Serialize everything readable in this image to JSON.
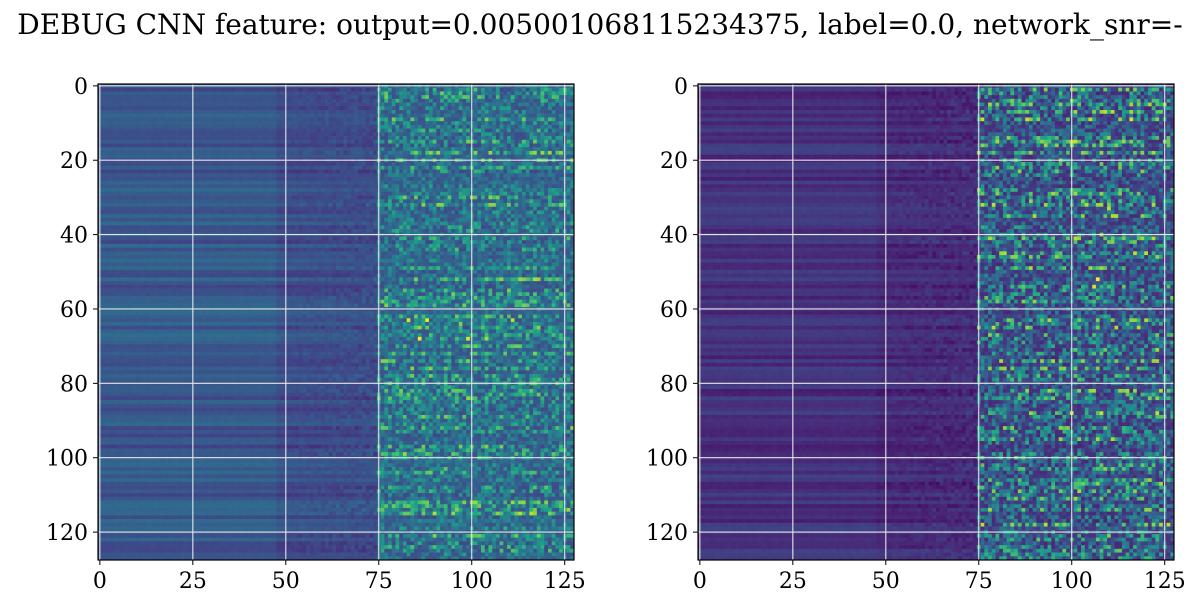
{
  "title": "DEBUG CNN feature: output=0.005001068115234375, label=0.0, network_snr=-",
  "colormap": "viridis",
  "grid": true,
  "chart_data": [
    {
      "type": "heatmap",
      "title": "",
      "xlabel": "",
      "ylabel": "",
      "xlim": [
        0,
        127
      ],
      "ylim": [
        127,
        0
      ],
      "grid": true,
      "x_ticks": [
        "0",
        "25",
        "50",
        "75",
        "100",
        "125"
      ],
      "y_ticks": [
        "0",
        "20",
        "40",
        "60",
        "80",
        "100",
        "120"
      ],
      "shape": [
        128,
        128
      ],
      "value_range": [
        0,
        1
      ],
      "mean_levels": {
        "cols_0_to_48": 0.27,
        "cols_48_to_75": 0.23,
        "cols_75_to_127": 0.24
      },
      "highlights": [
        {
          "row": 63,
          "col": 83,
          "value": 0.95
        },
        {
          "row": 63,
          "col": 88,
          "value": 0.97
        },
        {
          "row": 63,
          "col": 111,
          "value": 0.9
        },
        {
          "row": 68,
          "col": 86,
          "value": 1.0
        },
        {
          "row": 68,
          "col": 99,
          "value": 0.95
        },
        {
          "row": 68,
          "col": 104,
          "value": 0.85
        },
        {
          "row": 64,
          "col": 97,
          "value": 0.8
        },
        {
          "row": 103,
          "col": 93,
          "value": 0.75
        }
      ]
    },
    {
      "type": "heatmap",
      "title": "",
      "xlabel": "",
      "ylabel": "",
      "xlim": [
        0,
        127
      ],
      "ylim": [
        127,
        0
      ],
      "grid": true,
      "x_ticks": [
        "0",
        "25",
        "50",
        "75",
        "100",
        "125"
      ],
      "y_ticks": [
        "0",
        "20",
        "40",
        "60",
        "80",
        "100",
        "120"
      ],
      "shape": [
        128,
        128
      ],
      "value_range": [
        0,
        1
      ],
      "mean_levels": {
        "cols_0_to_48": 0.14,
        "cols_48_to_75": 0.12,
        "cols_75_to_127": 0.2
      },
      "highlights": [
        {
          "row": 52,
          "col": 107,
          "value": 1.0
        },
        {
          "row": 54,
          "col": 106,
          "value": 0.95
        },
        {
          "row": 40,
          "col": 108,
          "value": 0.85
        },
        {
          "row": 33,
          "col": 110,
          "value": 0.9
        },
        {
          "row": 20,
          "col": 97,
          "value": 0.8
        },
        {
          "row": 65,
          "col": 107,
          "value": 0.8
        },
        {
          "row": 74,
          "col": 112,
          "value": 0.8
        },
        {
          "row": 121,
          "col": 110,
          "value": 0.8
        }
      ]
    }
  ]
}
